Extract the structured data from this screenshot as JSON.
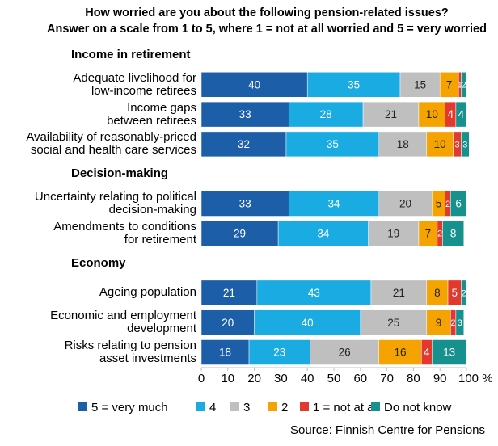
{
  "chart_data": {
    "type": "stacked-bar-horizontal",
    "title": "How worried are you about the following pension-related issues?",
    "subtitle": "Answer on a scale from 1 to 5, where 1 = not at all worried and 5 = very worried",
    "source": "Source: Finnish Centre for Pensions",
    "categories": [
      "Income in retirement",
      "Adequate livelihood for\nlow-income retirees",
      "Income gaps\nbetween retirees",
      "Availability of reasonably-priced\nsocial and health care services",
      "Decision-making",
      "Uncertainty relating to political\ndecision-making",
      "Amendments to conditions\nfor retirement",
      "Economy",
      "Ageing population",
      "Economic and employment\ndevelopment",
      "Risks relating to pension\nasset investments"
    ],
    "series": [
      {
        "name": "5 = very much",
        "color": "#1c5ea8",
        "values": [
          null,
          40,
          33,
          32,
          null,
          33,
          29,
          null,
          21,
          20,
          18
        ]
      },
      {
        "name": "4",
        "color": "#19abe2",
        "values": [
          null,
          35,
          28,
          35,
          null,
          34,
          34,
          null,
          43,
          40,
          23
        ]
      },
      {
        "name": "3",
        "color": "#bfbfbf",
        "values": [
          null,
          15,
          21,
          18,
          null,
          20,
          19,
          null,
          21,
          25,
          26
        ]
      },
      {
        "name": "2",
        "color": "#f4a300",
        "values": [
          null,
          7,
          10,
          10,
          null,
          5,
          7,
          null,
          8,
          9,
          16
        ]
      },
      {
        "name": "1 = not at all",
        "color": "#e2382e",
        "values": [
          null,
          1,
          4,
          3,
          null,
          2,
          2,
          null,
          5,
          2,
          4
        ]
      },
      {
        "name": "Do not know",
        "color": "#17918e",
        "values": [
          null,
          2,
          4,
          3,
          null,
          6,
          8,
          null,
          2,
          3,
          13
        ]
      }
    ],
    "xlim": [
      0,
      100
    ],
    "xticks": [
      0,
      10,
      20,
      30,
      40,
      50,
      60,
      70,
      80,
      90,
      {
        "value": 100,
        "label": "100 %"
      }
    ],
    "grid": false
  }
}
